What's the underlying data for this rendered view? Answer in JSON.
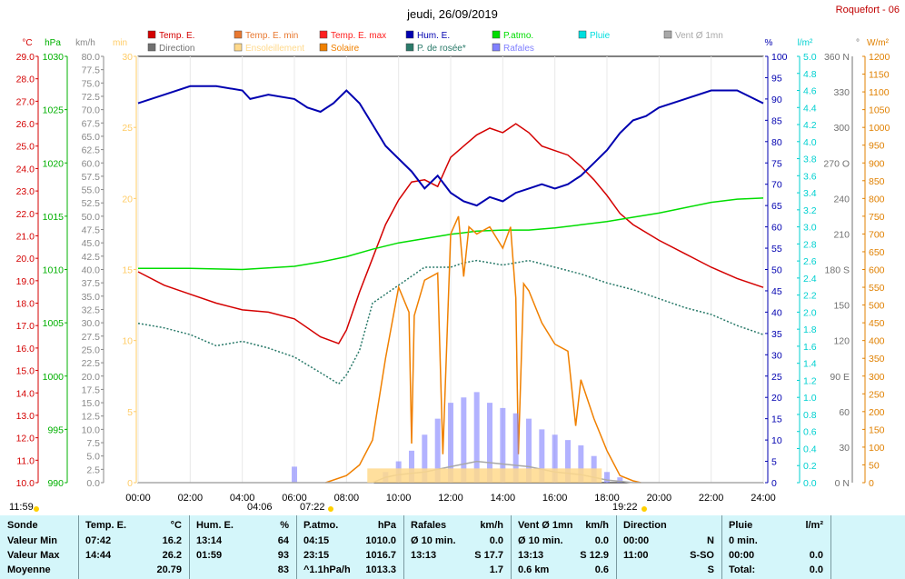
{
  "title": "jeudi, 26/09/2019",
  "station": "Roquefort - 06",
  "legend": [
    {
      "label": "Temp. E.",
      "color": "#d40000"
    },
    {
      "label": "Temp. E. min",
      "color": "#e87830"
    },
    {
      "label": "Temp. E. max",
      "color": "#ff2020"
    },
    {
      "label": "Hum. E.",
      "color": "#0000b0"
    },
    {
      "label": "P.atmo.",
      "color": "#00dd00"
    },
    {
      "label": "Pluie",
      "color": "#00dede"
    },
    {
      "label": "Vent Ø 1mn",
      "color": "#a8a8a8"
    },
    {
      "label": "Direction",
      "color": "#707070"
    },
    {
      "label": "Ensoleillement",
      "color": "#ffd98c"
    },
    {
      "label": "Solaire",
      "color": "#f08000"
    },
    {
      "label": "P. de rosée*",
      "color": "#2a7a6a"
    },
    {
      "label": "Rafales",
      "color": "#8080ff"
    }
  ],
  "axis_units": {
    "temp": "°C",
    "pressure": "hPa",
    "wind": "km/h",
    "sun": "min",
    "hum": "%",
    "rain": "l/m²",
    "dir": "°",
    "solar": "W/m²"
  },
  "x_ticks": [
    "00:00",
    "02:00",
    "04:00",
    "06:00",
    "08:00",
    "10:00",
    "12:00",
    "14:00",
    "16:00",
    "18:00",
    "20:00",
    "22:00",
    "24:00"
  ],
  "sunrise_label": "07:22",
  "sunset_label": "19:22",
  "left_time": "11:59",
  "moon_time": "04:06",
  "axes": {
    "temp": {
      "min": 10.0,
      "max": 29.0,
      "step": 1.0,
      "color": "#d40000"
    },
    "pressure": {
      "min": 990,
      "max": 1030,
      "step": 5,
      "color": "#00b000"
    },
    "wind": {
      "min": 0,
      "max": 80,
      "step": 2.5,
      "color": "#888888"
    },
    "sun": {
      "min": 0,
      "max": 30,
      "step": 5,
      "color": "#ffcc66"
    },
    "hum": {
      "min": 0,
      "max": 100,
      "step": 5,
      "color": "#0000b0"
    },
    "rain": {
      "min": 0,
      "max": 5,
      "step": 0.2,
      "color": "#00d0d0"
    },
    "dir": {
      "ticks": [
        "0 N",
        "30",
        "60",
        "90 E",
        "120",
        "150",
        "180 S",
        "210",
        "240",
        "270 O",
        "300",
        "330",
        "360 N"
      ],
      "color": "#707070"
    },
    "solar": {
      "min": 0,
      "max": 1200,
      "step": 50,
      "color": "#e08000"
    }
  },
  "chart_data": {
    "type": "line",
    "x_unit": "hour of day",
    "series": [
      {
        "name": "Temp. E.",
        "axis": "temp",
        "color": "#d40000",
        "points": [
          [
            0,
            19.4
          ],
          [
            1,
            18.8
          ],
          [
            2,
            18.4
          ],
          [
            3,
            18.0
          ],
          [
            4,
            17.7
          ],
          [
            5,
            17.6
          ],
          [
            6,
            17.3
          ],
          [
            7,
            16.5
          ],
          [
            7.7,
            16.2
          ],
          [
            8,
            16.8
          ],
          [
            8.5,
            18.5
          ],
          [
            9,
            20.0
          ],
          [
            9.5,
            21.5
          ],
          [
            10,
            22.6
          ],
          [
            10.5,
            23.4
          ],
          [
            11,
            23.5
          ],
          [
            11.5,
            23.2
          ],
          [
            12,
            24.5
          ],
          [
            12.5,
            25.0
          ],
          [
            13,
            25.5
          ],
          [
            13.5,
            25.8
          ],
          [
            14,
            25.6
          ],
          [
            14.5,
            26.0
          ],
          [
            15,
            25.6
          ],
          [
            15.5,
            25.0
          ],
          [
            16,
            24.8
          ],
          [
            16.5,
            24.6
          ],
          [
            17,
            24.1
          ],
          [
            17.5,
            23.5
          ],
          [
            18,
            22.8
          ],
          [
            18.5,
            22.0
          ],
          [
            19,
            21.5
          ],
          [
            20,
            20.8
          ],
          [
            21,
            20.2
          ],
          [
            22,
            19.6
          ],
          [
            23,
            19.1
          ],
          [
            24,
            18.7
          ]
        ]
      },
      {
        "name": "P. de rosée*",
        "axis": "temp",
        "color": "#2a7a6a",
        "dashed": true,
        "points": [
          [
            0,
            17.1
          ],
          [
            1,
            16.9
          ],
          [
            2,
            16.6
          ],
          [
            3,
            16.1
          ],
          [
            4,
            16.3
          ],
          [
            5,
            16.0
          ],
          [
            6,
            15.6
          ],
          [
            7,
            14.9
          ],
          [
            7.7,
            14.4
          ],
          [
            8,
            14.8
          ],
          [
            8.5,
            15.9
          ],
          [
            9,
            18.0
          ],
          [
            10,
            18.8
          ],
          [
            10.5,
            19.2
          ],
          [
            11,
            19.6
          ],
          [
            12,
            19.6
          ],
          [
            12.5,
            19.8
          ],
          [
            13,
            19.9
          ],
          [
            14,
            19.7
          ],
          [
            15,
            19.9
          ],
          [
            16,
            19.6
          ],
          [
            17,
            19.3
          ],
          [
            18,
            18.9
          ],
          [
            19,
            18.6
          ],
          [
            20,
            18.2
          ],
          [
            21,
            17.8
          ],
          [
            22,
            17.5
          ],
          [
            23,
            17.0
          ],
          [
            24,
            16.6
          ]
        ]
      },
      {
        "name": "Hum. E.",
        "axis": "hum",
        "color": "#0000b0",
        "points": [
          [
            0,
            89
          ],
          [
            1,
            91
          ],
          [
            2,
            93
          ],
          [
            3,
            93
          ],
          [
            4,
            92
          ],
          [
            4.3,
            90
          ],
          [
            5,
            91
          ],
          [
            6,
            90
          ],
          [
            6.5,
            88
          ],
          [
            7,
            87
          ],
          [
            7.5,
            89
          ],
          [
            8,
            92
          ],
          [
            8.5,
            89
          ],
          [
            9,
            84
          ],
          [
            9.5,
            79
          ],
          [
            10,
            76
          ],
          [
            10.5,
            73
          ],
          [
            11,
            69
          ],
          [
            11.5,
            72
          ],
          [
            12,
            68
          ],
          [
            12.5,
            66
          ],
          [
            13,
            65
          ],
          [
            13.5,
            67
          ],
          [
            14,
            66
          ],
          [
            14.5,
            68
          ],
          [
            15,
            69
          ],
          [
            15.5,
            70
          ],
          [
            16,
            69
          ],
          [
            16.5,
            70
          ],
          [
            17,
            72
          ],
          [
            17.5,
            75
          ],
          [
            18,
            78
          ],
          [
            18.5,
            82
          ],
          [
            19,
            85
          ],
          [
            19.5,
            86
          ],
          [
            20,
            88
          ],
          [
            21,
            90
          ],
          [
            22,
            92
          ],
          [
            23,
            92
          ],
          [
            24,
            89
          ]
        ]
      },
      {
        "name": "P.atmo.",
        "axis": "pressure",
        "color": "#00dd00",
        "points": [
          [
            0,
            1010.1
          ],
          [
            2,
            1010.1
          ],
          [
            4,
            1010.0
          ],
          [
            6,
            1010.3
          ],
          [
            7,
            1010.7
          ],
          [
            8,
            1011.2
          ],
          [
            9,
            1011.9
          ],
          [
            10,
            1012.5
          ],
          [
            11,
            1012.9
          ],
          [
            12,
            1013.3
          ],
          [
            13,
            1013.6
          ],
          [
            14,
            1013.7
          ],
          [
            15,
            1013.7
          ],
          [
            16,
            1013.9
          ],
          [
            17,
            1014.2
          ],
          [
            18,
            1014.5
          ],
          [
            19,
            1014.9
          ],
          [
            20,
            1015.3
          ],
          [
            21,
            1015.8
          ],
          [
            22,
            1016.3
          ],
          [
            23,
            1016.6
          ],
          [
            24,
            1016.7
          ]
        ]
      },
      {
        "name": "Solaire",
        "axis": "solar",
        "color": "#f08000",
        "points": [
          [
            7.2,
            0
          ],
          [
            8,
            20
          ],
          [
            8.5,
            50
          ],
          [
            9,
            120
          ],
          [
            9.5,
            350
          ],
          [
            10,
            550
          ],
          [
            10.4,
            480
          ],
          [
            10.5,
            110
          ],
          [
            10.6,
            470
          ],
          [
            11,
            570
          ],
          [
            11.5,
            590
          ],
          [
            11.7,
            80
          ],
          [
            12,
            700
          ],
          [
            12.3,
            750
          ],
          [
            12.5,
            580
          ],
          [
            12.7,
            720
          ],
          [
            13,
            700
          ],
          [
            13.5,
            720
          ],
          [
            14,
            660
          ],
          [
            14.3,
            720
          ],
          [
            14.5,
            520
          ],
          [
            14.6,
            80
          ],
          [
            14.8,
            560
          ],
          [
            15,
            540
          ],
          [
            15.5,
            450
          ],
          [
            16,
            390
          ],
          [
            16.5,
            370
          ],
          [
            16.8,
            160
          ],
          [
            17,
            290
          ],
          [
            17.5,
            180
          ],
          [
            18,
            90
          ],
          [
            18.5,
            20
          ],
          [
            19,
            5
          ],
          [
            19.3,
            0
          ]
        ]
      },
      {
        "name": "Rafales",
        "axis": "wind",
        "color": "#8080ff",
        "points": [
          [
            5.9,
            0
          ],
          [
            6,
            3
          ],
          [
            6.1,
            0
          ],
          [
            9,
            0
          ],
          [
            9.5,
            2
          ],
          [
            10,
            4
          ],
          [
            10.5,
            6
          ],
          [
            11,
            9
          ],
          [
            11.5,
            12
          ],
          [
            12,
            15
          ],
          [
            12.5,
            16
          ],
          [
            13,
            17
          ],
          [
            13.5,
            15
          ],
          [
            14,
            14
          ],
          [
            14.5,
            13
          ],
          [
            15,
            12
          ],
          [
            15.5,
            10
          ],
          [
            16,
            9
          ],
          [
            16.5,
            8
          ],
          [
            17,
            7
          ],
          [
            17.5,
            5
          ],
          [
            18,
            2
          ],
          [
            18.5,
            1
          ],
          [
            19,
            0
          ]
        ]
      },
      {
        "name": "Vent Ø 1mn",
        "axis": "wind",
        "color": "#a8a8a8",
        "points": [
          [
            0,
            0
          ],
          [
            9,
            0
          ],
          [
            9.5,
            1
          ],
          [
            10,
            1.5
          ],
          [
            11,
            2
          ],
          [
            12,
            3
          ],
          [
            13,
            4
          ],
          [
            14,
            3.5
          ],
          [
            15,
            3
          ],
          [
            16,
            2
          ],
          [
            17,
            1.5
          ],
          [
            18,
            0.5
          ],
          [
            19,
            0
          ],
          [
            24,
            0
          ]
        ]
      },
      {
        "name": "Ensoleillement",
        "axis": "sun",
        "color": "#ffd98c",
        "points": [
          [
            8.8,
            1.0
          ],
          [
            17.8,
            1.0
          ]
        ]
      }
    ],
    "xlim": [
      0,
      24
    ]
  },
  "summary": {
    "sonde": {
      "header": "Sonde",
      "rows": [
        "Valeur Min",
        "Valeur Max",
        "Moyenne"
      ]
    },
    "temp": {
      "header": "Temp. E.",
      "unit": "°C",
      "rows": [
        [
          "07:42",
          "16.2"
        ],
        [
          "14:44",
          "26.2"
        ],
        [
          "",
          "20.79"
        ]
      ]
    },
    "hum": {
      "header": "Hum. E.",
      "unit": "%",
      "rows": [
        [
          "13:14",
          "64"
        ],
        [
          "01:59",
          "93"
        ],
        [
          "",
          "83"
        ]
      ]
    },
    "patmo": {
      "header": "P.atmo.",
      "unit": "hPa",
      "rows": [
        [
          "04:15",
          "1010.0"
        ],
        [
          "23:15",
          "1016.7"
        ],
        [
          "^1.1hPa/h",
          "1013.3"
        ]
      ]
    },
    "rafales": {
      "header": "Rafales",
      "unit": "km/h",
      "rows": [
        [
          "Ø 10 min.",
          "0.0"
        ],
        [
          "13:13",
          "S 17.7"
        ],
        [
          "",
          "1.7"
        ]
      ]
    },
    "vent": {
      "header": "Vent Ø 1mn",
      "unit": "km/h",
      "rows": [
        [
          "Ø 10 min.",
          "0.0"
        ],
        [
          "13:13",
          "S 12.9"
        ],
        [
          "0.6 km",
          "0.6"
        ]
      ]
    },
    "direction": {
      "header": "Direction",
      "unit": "",
      "rows": [
        [
          "00:00",
          "N"
        ],
        [
          "11:00",
          "S-SO"
        ],
        [
          "",
          "S"
        ]
      ]
    },
    "pluie": {
      "header": "Pluie",
      "unit": "l/m²",
      "rows": [
        [
          "0 min.",
          ""
        ],
        [
          "00:00",
          "0.0"
        ],
        [
          "Total:",
          "0.0"
        ]
      ]
    }
  }
}
